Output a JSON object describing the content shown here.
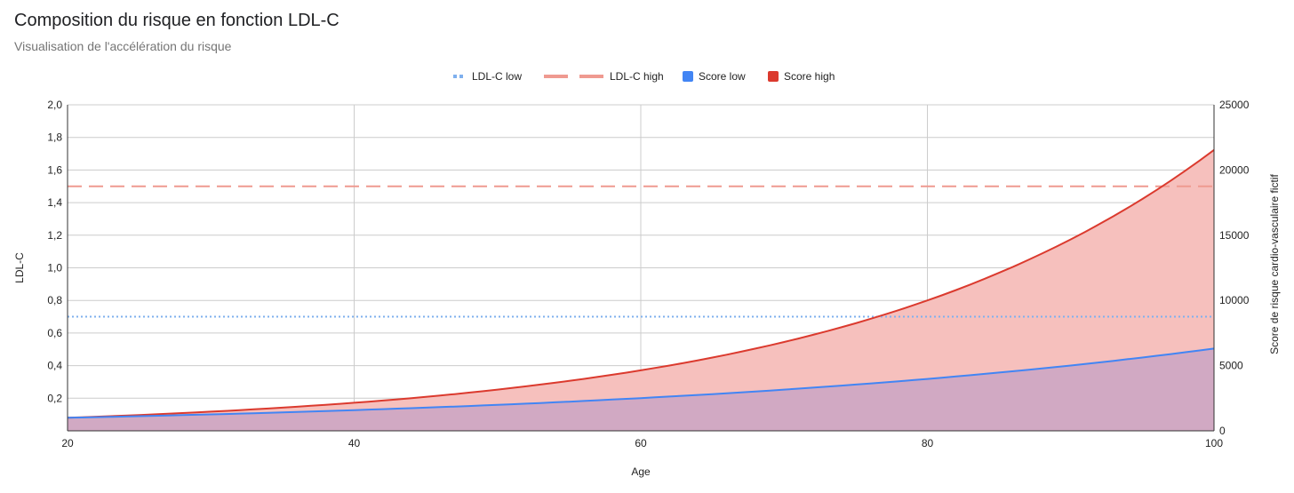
{
  "title": "Composition du risque en fonction LDL-C",
  "subtitle": "Visualisation de l'accélération du risque",
  "colors": {
    "ldl_low": "#7fb0ee",
    "ldl_high": "#ef9a90",
    "score_low": "#4285f4",
    "score_high": "#db3a2e",
    "score_high_fill": "#f6c0bd",
    "overlap_fill": "#d1a9c3",
    "grid": "#cccccc"
  },
  "chart_data": {
    "type": "area",
    "xlabel": "Age",
    "ylabel_left": "LDL-C",
    "ylabel_right": "Score de risque cardio-vasculaire fictif",
    "xlim": [
      20,
      100
    ],
    "ylim_left": [
      0,
      2.0
    ],
    "ylim_right": [
      0,
      25000
    ],
    "x_ticks": [
      "20",
      "40",
      "60",
      "80",
      "100"
    ],
    "y_left_ticks": [
      "0,2",
      "0,4",
      "0,6",
      "0,8",
      "1,0",
      "1,2",
      "1,4",
      "1,6",
      "1,8",
      "2,0"
    ],
    "y_right_ticks": [
      "0",
      "5000",
      "10000",
      "15000",
      "20000",
      "25000"
    ],
    "grid": true,
    "legend_position": "top",
    "legend": [
      "LDL-C low",
      "LDL-C high",
      "Score low",
      "Score high"
    ],
    "series": [
      {
        "name": "LDL-C low",
        "axis": "left",
        "style": "dotted",
        "x": [
          20,
          100
        ],
        "values": [
          0.7,
          0.7
        ]
      },
      {
        "name": "LDL-C high",
        "axis": "left",
        "style": "dashed",
        "x": [
          20,
          100
        ],
        "values": [
          1.5,
          1.5
        ]
      },
      {
        "name": "Score low",
        "axis": "right",
        "style": "area",
        "x": [
          20,
          30,
          40,
          50,
          60,
          70,
          80,
          90,
          100
        ],
        "values": [
          1000,
          1260,
          1590,
          1990,
          2510,
          3160,
          3980,
          5010,
          6310
        ]
      },
      {
        "name": "Score high",
        "axis": "right",
        "style": "area",
        "x": [
          20,
          30,
          40,
          50,
          60,
          70,
          80,
          90,
          100
        ],
        "values": [
          1000,
          1470,
          2150,
          3160,
          4640,
          6810,
          10000,
          14680,
          21540
        ]
      }
    ]
  }
}
